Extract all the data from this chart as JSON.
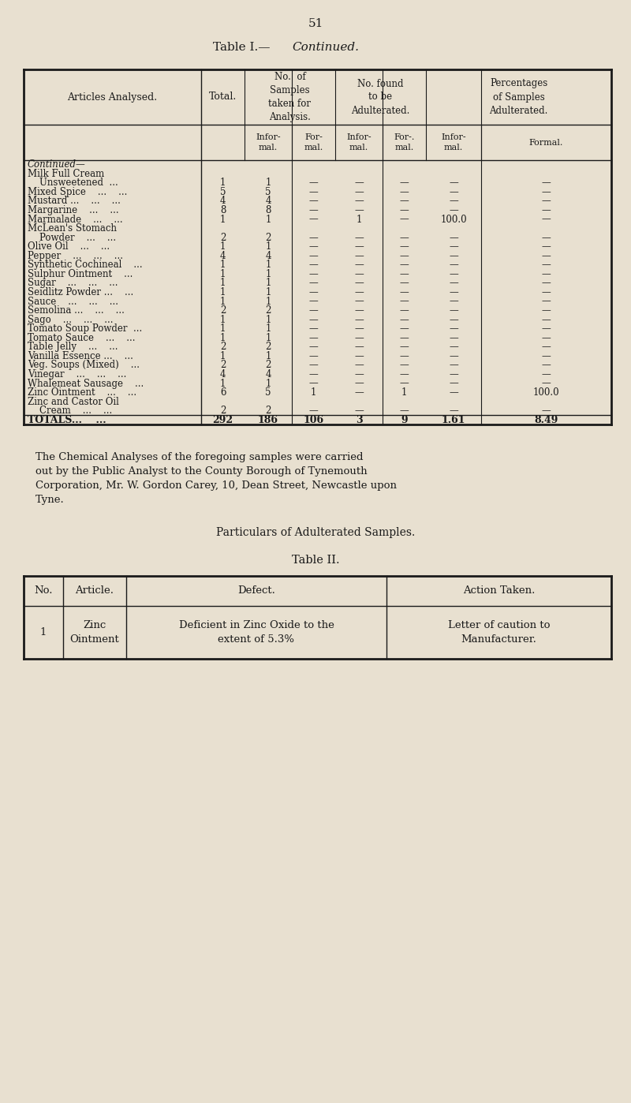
{
  "page_number": "51",
  "title1": "Table I.—",
  "title1_italic": "Continued.",
  "bg_color": "#e8e0d0",
  "table1": {
    "col_headers": [
      "Articles Analysed.",
      "Total.",
      "No. of\nSamples\ntaken for\nAnalysis.",
      "",
      "No. found\nto be\nAdulterated.",
      "",
      "Percentages\nof Samples\nAdulterated.",
      ""
    ],
    "sub_headers": [
      "Infor-\nmal.",
      "For-\nmal.",
      "Infor-\nmal.",
      "For-.\nmal.",
      "Infor-\nmal.",
      "Formal."
    ],
    "rows": [
      [
        "Continued—",
        "",
        "",
        "",
        "",
        "",
        "",
        ""
      ],
      [
        "Milk Full Cream",
        "",
        "",
        "",
        "",
        "",
        "",
        ""
      ],
      [
        "    Unsweetened  ...",
        "1",
        "1",
        "—",
        "—",
        "—",
        "—",
        "—"
      ],
      [
        "Mixed Spice    ...    ...",
        "5",
        "5",
        "—",
        "—",
        "—",
        "—",
        "—"
      ],
      [
        "Mustard ...    ...    ...",
        "4",
        "4",
        "—",
        "—",
        "—",
        "—",
        "—"
      ],
      [
        "Margarine    ...    ...",
        "8",
        "8",
        "—",
        "—",
        "—",
        "—",
        "—"
      ],
      [
        "Marmalade    ...    ...",
        "1",
        "1",
        "—",
        "1",
        "—",
        "100.0",
        "—"
      ],
      [
        "McLean's Stomach",
        "",
        "",
        "",
        "",
        "",
        "",
        ""
      ],
      [
        "    Powder    ...    ...",
        "2",
        "2",
        "—",
        "—",
        "—",
        "—",
        "—"
      ],
      [
        "Olive Oil    ...    ...",
        "1",
        "1",
        "—",
        "—",
        "—",
        "—",
        "—"
      ],
      [
        "Pepper    ...    ...    ...",
        "4",
        "4",
        "—",
        "—",
        "—",
        "—",
        "—"
      ],
      [
        "Synthetic Cochineal    ...",
        "1",
        "1",
        "—",
        "—",
        "—",
        "—",
        "—"
      ],
      [
        "Sulphur Ointment    ...",
        "1",
        "1",
        "—",
        "—",
        "—",
        "—",
        "—"
      ],
      [
        "Sugar    ...    ...    ...",
        "1",
        "1",
        "—",
        "—",
        "—",
        "—",
        "—"
      ],
      [
        "Seidlitz Powder ...    ...",
        "1",
        "1",
        "—",
        "—",
        "—",
        "—",
        "—"
      ],
      [
        "Sauce    ...    ...    ...",
        "1",
        "1",
        "—",
        "—",
        "—",
        "—",
        "—"
      ],
      [
        "Semolina ...    ...    ...",
        "2",
        "2",
        "—",
        "—",
        "—",
        "—",
        "—"
      ],
      [
        "Sago    ...    ...    ...",
        "1",
        "1",
        "—",
        "—",
        "—",
        "—",
        "—"
      ],
      [
        "Tomato Soup Powder  ...",
        "1",
        "1",
        "—",
        "—",
        "—",
        "—",
        "—"
      ],
      [
        "Tomato Sauce    ...    ...",
        "1",
        "1",
        "—",
        "—",
        "—",
        "—",
        "—"
      ],
      [
        "Table Jelly    ...    ...",
        "2",
        "2",
        "—",
        "—",
        "—",
        "—",
        "—"
      ],
      [
        "Vanilla Essence ...    ...",
        "1",
        "1",
        "—",
        "—",
        "—",
        "—",
        "—"
      ],
      [
        "Veg. Soups (Mixed)    ...",
        "2",
        "2",
        "—",
        "—",
        "—",
        "—",
        "—"
      ],
      [
        "Vinegar    ...    ...    ...",
        "4",
        "4",
        "—",
        "—",
        "—",
        "—",
        "—"
      ],
      [
        "Whalemeat Sausage    ...",
        "1",
        "1",
        "—",
        "—",
        "—",
        "—",
        "—"
      ],
      [
        "Zinc Ointment    ...    ...",
        "6",
        "5",
        "1",
        "—",
        "1",
        "—",
        "100.0"
      ],
      [
        "Zinc and Castor Oil",
        "",
        "",
        "",
        "",
        "",
        "",
        ""
      ],
      [
        "    Cream    ...    ...",
        "2",
        "2",
        "—",
        "—",
        "—",
        "—",
        "—"
      ],
      [
        "TOTALS...    ...",
        "292",
        "186",
        "106",
        "3",
        "9",
        "1.61",
        "8.49"
      ]
    ]
  },
  "paragraph": "The Chemical Analyses of the foregoing samples were carried out by the Public Analyst to the County Borough of Tynemouth Corporation, Mr. W. Gordon Carey, 10, Dean Street, Newcastle upon Tyne.",
  "subtitle2a": "Particulars of Adulterated Samples.",
  "subtitle2b": "Table II.",
  "table2": {
    "headers": [
      "No.",
      "Article.",
      "Defect.",
      "Action Taken."
    ],
    "rows": [
      [
        "1",
        "Zinc\nOintment",
        "Deficient in Zinc Oxide to the\nextent of 5.3%",
        "Letter of caution to\nManufacturer."
      ]
    ]
  },
  "text_color": "#1a1a1a",
  "line_color": "#1a1a1a",
  "table_bg": "#e8e0d0"
}
